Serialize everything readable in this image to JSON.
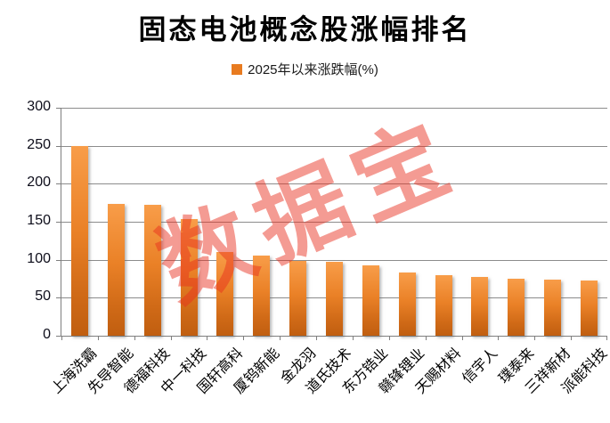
{
  "title": "固态电池概念股涨幅排名",
  "legend": {
    "label": "2025年以来涨跌幅(%)",
    "swatch_color": "#e87b20"
  },
  "watermark": {
    "text": "数据宝",
    "color": "rgba(233,45,30,0.48)"
  },
  "chart_data": {
    "type": "bar",
    "title": "固态电池概念股涨幅排名",
    "categories": [
      "上海洗霸",
      "先导智能",
      "德福科技",
      "中一科技",
      "国轩高科",
      "厦钨新能",
      "金龙羽",
      "道氏技术",
      "东方锆业",
      "赣锋锂业",
      "天赐材料",
      "信宇人",
      "璞泰来",
      "三祥新材",
      "派能科技"
    ],
    "series": [
      {
        "name": "2025年以来涨跌幅(%)",
        "values": [
          250,
          174,
          172,
          154,
          110,
          106,
          98,
          97,
          93,
          83,
          80,
          77,
          75,
          74,
          73
        ]
      }
    ],
    "xlabel": "",
    "ylabel": "",
    "ylim": [
      0,
      300
    ],
    "yticks": [
      0,
      50,
      100,
      150,
      200,
      250,
      300
    ],
    "grid": true,
    "legend_position": "top",
    "bar_gradient_top": "#f89d49",
    "bar_gradient_bottom": "#c05e10",
    "gridline_color": "#8c8c8c",
    "axis_color": "#7f7f7f"
  }
}
